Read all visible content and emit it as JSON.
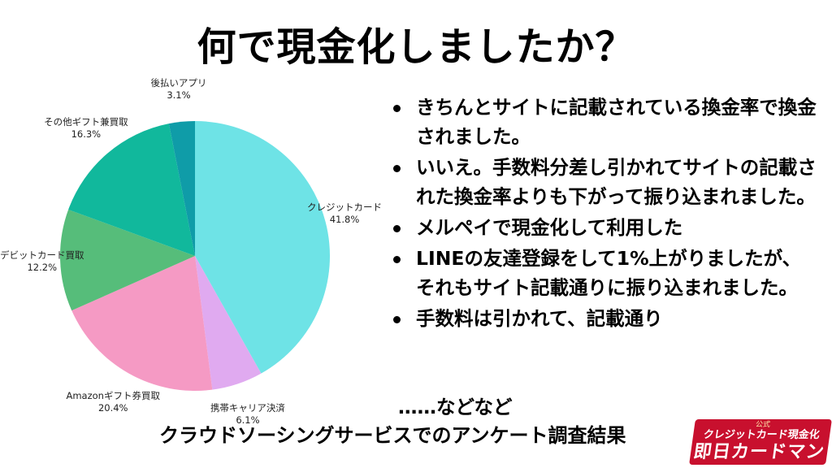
{
  "title": "何で現金化しましたか？",
  "chart_data": {
    "type": "pie",
    "title": "",
    "slices": [
      {
        "label": "クレジットカード",
        "value": 41.8,
        "display": "41.8%",
        "color": "#6ee3e6"
      },
      {
        "label": "携帯キャリア決済",
        "value": 6.1,
        "display": "6.1%",
        "color": "#e0aaf0"
      },
      {
        "label": "Amazonギフト券買取",
        "value": 20.4,
        "display": "20.4%",
        "color": "#f59ac4"
      },
      {
        "label": "デビットカード買取",
        "value": 12.2,
        "display": "12.2%",
        "color": "#56bd7a"
      },
      {
        "label": "その他ギフト兼買取",
        "value": 16.3,
        "display": "16.3%",
        "color": "#11b89c"
      },
      {
        "label": "後払いアプリ",
        "value": 3.1,
        "display": "3.1%",
        "color": "#0f9ca8"
      }
    ]
  },
  "comments": [
    "きちんとサイトに記載されている換金率で換金されました。",
    "いいえ。手数料分差し引かれてサイトの記載された換金率よりも下がって振り込まれました。",
    "メルペイで現金化して利用した",
    "LINEの友達登録をして1%上がりましたが、それもサイト記載通りに振り込まれました。",
    "手数料は引かれて、記載通り"
  ],
  "trailing": "……などなど",
  "source": "クラウドソーシングサービスでのアンケート調査結果",
  "logo": {
    "small": "公式",
    "mid": "クレジットカード現金化",
    "big": "即日カードマン"
  }
}
